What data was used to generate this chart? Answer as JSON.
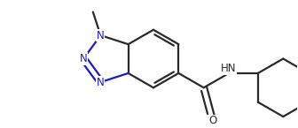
{
  "background_color": "#ffffff",
  "line_color": "#2a2a2a",
  "blue_color": "#1a1acd",
  "line_width": 1.6,
  "figsize": [
    3.36,
    1.45
  ],
  "dpi": 100,
  "xlim": [
    0,
    336
  ],
  "ylim": [
    0,
    145
  ]
}
